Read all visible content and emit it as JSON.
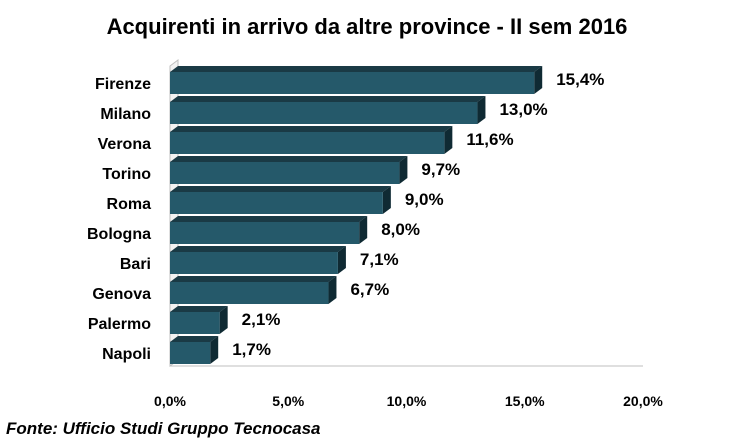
{
  "chart_data": {
    "type": "bar",
    "orientation": "horizontal",
    "title": "Acquirenti in arrivo da altre province - II sem 2016",
    "source": "Fonte: Ufficio Studi Gruppo Tecnocasa",
    "categories": [
      "Firenze",
      "Milano",
      "Verona",
      "Torino",
      "Roma",
      "Bologna",
      "Bari",
      "Genova",
      "Palermo",
      "Napoli"
    ],
    "values": [
      15.4,
      13.0,
      11.6,
      9.7,
      9.0,
      8.0,
      7.1,
      6.7,
      2.1,
      1.7
    ],
    "value_labels": [
      "15,4%",
      "13,0%",
      "11,6%",
      "9,7%",
      "9,0%",
      "8,0%",
      "7,1%",
      "6,7%",
      "2,1%",
      "1,7%"
    ],
    "xlim": [
      0,
      20
    ],
    "x_ticks": [
      0,
      5,
      10,
      15,
      20
    ],
    "x_tick_labels": [
      "0,0%",
      "5,0%",
      "10,0%",
      "15,0%",
      "20,0%"
    ],
    "grid": false,
    "legend": "none",
    "bar_color": "#25596a",
    "bar_top_color": "#1a3a45",
    "bar_side_color": "#0f2a33"
  }
}
